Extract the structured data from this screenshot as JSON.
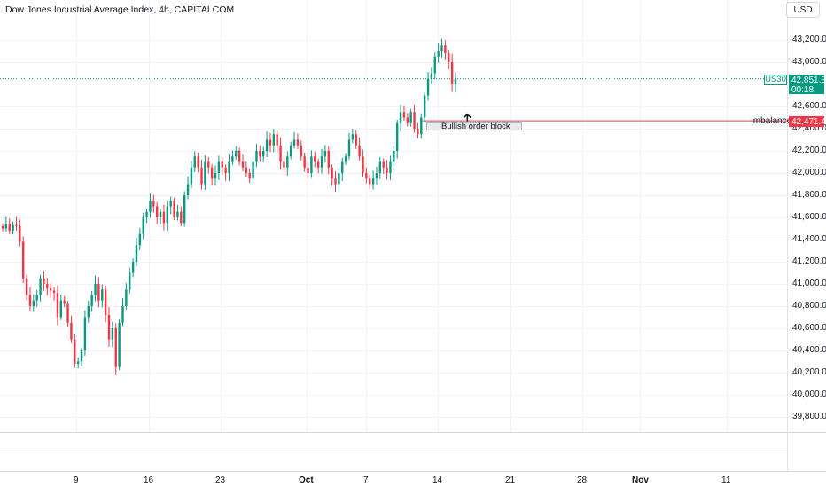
{
  "chart_title": "Dow Jones Industrial Average Index, 4h, CAPITALCOM",
  "currency_button": "USD",
  "colors": {
    "up": "#089981",
    "down": "#f23645",
    "imbalance_line": "#f23645",
    "grid": "#f0f3fa",
    "text": "#131722"
  },
  "last_price": {
    "symbol": "US30",
    "price": "42,851.3",
    "countdown": "00:18",
    "value": 42851.3
  },
  "imbalance": {
    "label": "Imbalance",
    "price": "42,471.4",
    "value": 42471.4
  },
  "annotation": {
    "text": "Bullish order block",
    "arrow": "up-arrow-icon"
  },
  "chart_data": {
    "type": "candlestick",
    "title": "Dow Jones Industrial Average Index, 4h, CAPITALCOM",
    "y_axis_ticks": [
      "39,800.0",
      "40,000.0",
      "40,200.0",
      "40,400.0",
      "40,600.0",
      "40,800.0",
      "41,000.0",
      "41,200.0",
      "41,400.0",
      "41,600.0",
      "41,800.0",
      "42,000.0",
      "42,200.0",
      "42,400.0",
      "42,600.0",
      "43,000.0",
      "43,200.0"
    ],
    "x_axis_ticks": [
      "9",
      "16",
      "23",
      "Oct",
      "7",
      "14",
      "21",
      "28",
      "Nov",
      "11"
    ],
    "ylim": [
      39700,
      43450
    ],
    "grid": true,
    "closes": [
      41500,
      41540,
      41480,
      41530,
      41520,
      41380,
      41050,
      40900,
      40800,
      40850,
      40900,
      41050,
      41000,
      40960,
      40940,
      40920,
      40700,
      40850,
      40820,
      40650,
      40500,
      40280,
      40300,
      40400,
      40700,
      40800,
      40900,
      41000,
      40850,
      40950,
      40720,
      40500,
      40600,
      40250,
      40650,
      40800,
      40950,
      41100,
      41200,
      41350,
      41450,
      41600,
      41650,
      41750,
      41700,
      41600,
      41650,
      41550,
      41700,
      41750,
      41600,
      41650,
      41550,
      41800,
      41900,
      42050,
      42150,
      42050,
      41900,
      42100,
      42050,
      41950,
      42000,
      42100,
      42050,
      42000,
      42100,
      42150,
      42200,
      42100,
      42050,
      42000,
      41950,
      42100,
      42200,
      42150,
      42200,
      42300,
      42250,
      42350,
      42250,
      42100,
      42050,
      42150,
      42250,
      42300,
      42250,
      42150,
      42050,
      42000,
      42150,
      42100,
      42050,
      42150,
      42200,
      42050,
      41950,
      41900,
      42000,
      42100,
      42150,
      42300,
      42350,
      42250,
      42150,
      42000,
      41950,
      41900,
      41950,
      42000,
      42100,
      42050,
      42000,
      42100,
      42200,
      42450,
      42550,
      42500,
      42450,
      42550,
      42400,
      42350,
      42500,
      42700,
      42850,
      42900,
      43050,
      43100,
      43150,
      43080,
      43000,
      42800,
      42851
    ]
  }
}
